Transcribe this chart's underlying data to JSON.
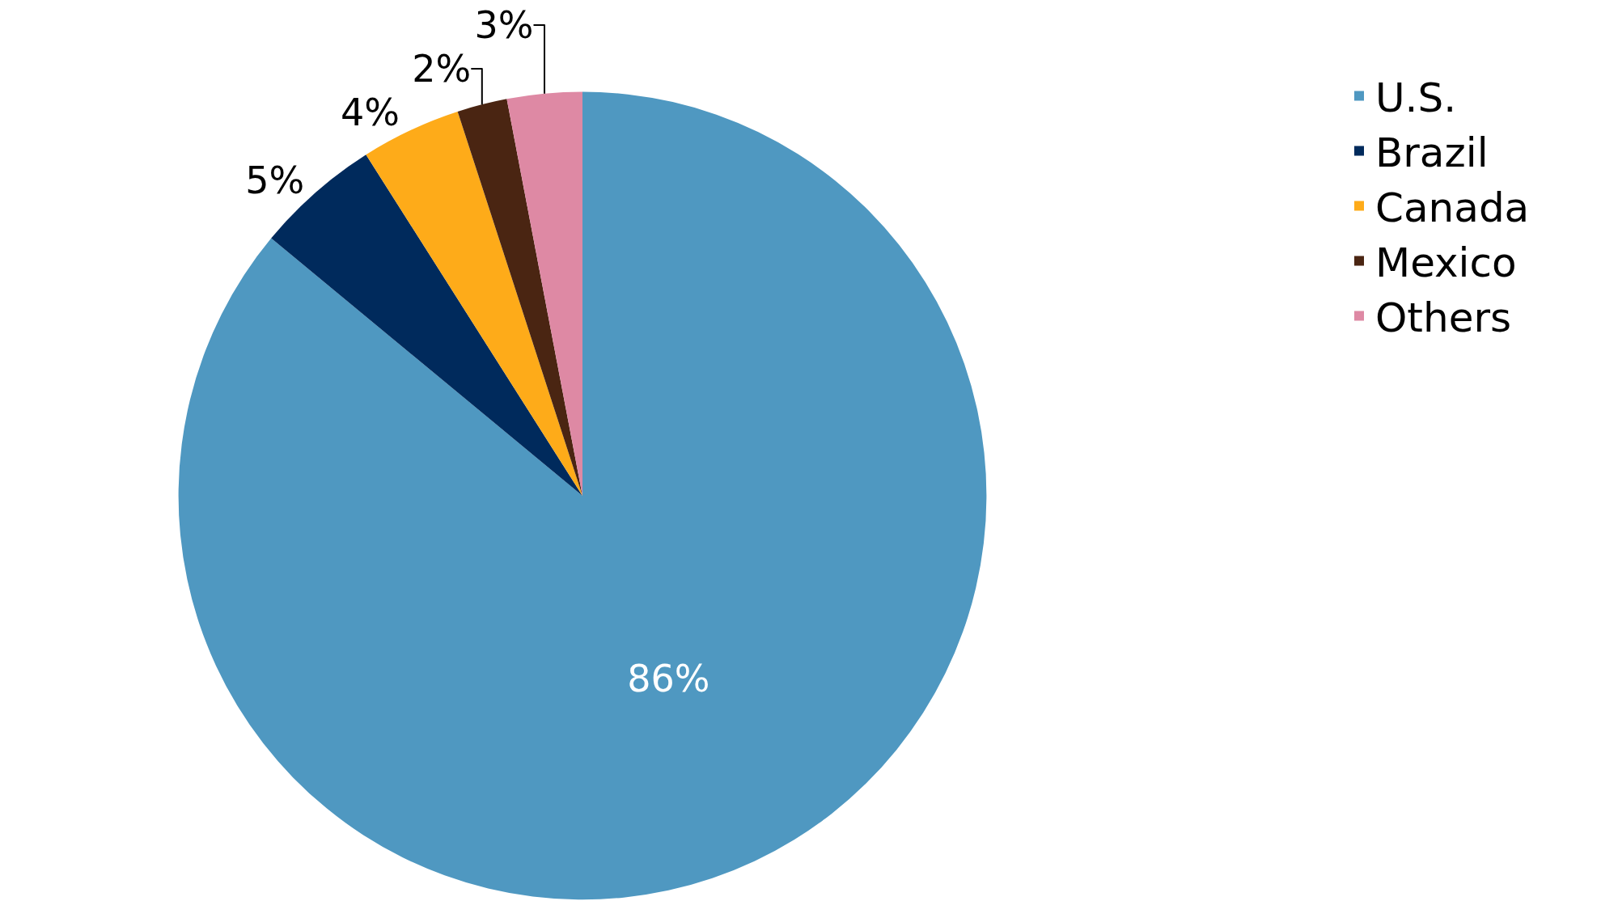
{
  "chart_data": {
    "type": "pie",
    "categories": [
      "U.S.",
      "Brazil",
      "Canada",
      "Mexico",
      "Others"
    ],
    "values": [
      86,
      5,
      4,
      2,
      3
    ],
    "value_labels": [
      "86%",
      "5%",
      "4%",
      "2%",
      "3%"
    ],
    "colors": [
      "#4f98c1",
      "#002a5c",
      "#feab19",
      "#4a2512",
      "#de89a4"
    ],
    "legend": "top right"
  }
}
